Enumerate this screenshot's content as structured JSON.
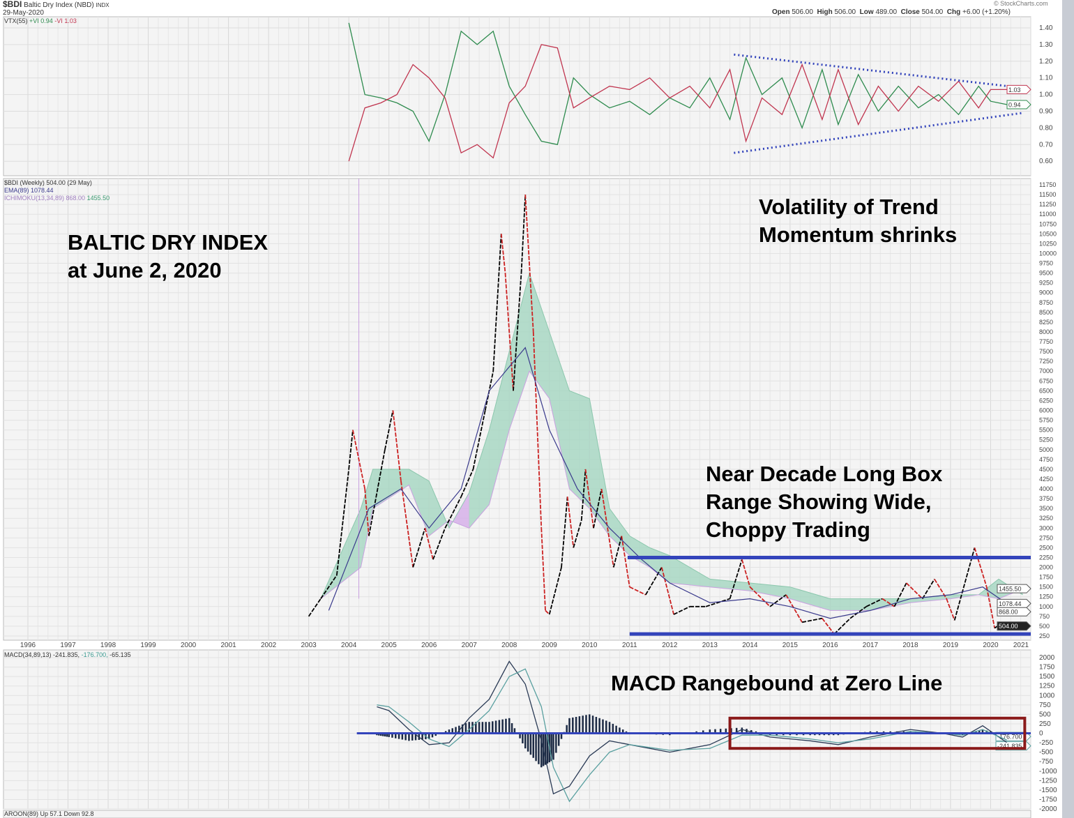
{
  "header": {
    "symbol": "$BDI",
    "name": "Baltic Dry Index (NBD)",
    "exchange": "INDX",
    "date": "29-May-2020",
    "watermark": "© StockCharts.com",
    "open_label": "Open",
    "open": "506.00",
    "high_label": "High",
    "high": "506.00",
    "low_label": "Low",
    "low": "489.00",
    "close_label": "Close",
    "close": "504.00",
    "chg_label": "Chg",
    "chg": "+6.00 (+1.20%)"
  },
  "legends": {
    "vtx": "VTX(55)",
    "vtx_plus": "+VI 0.94",
    "vtx_minus": "-VI 1.03",
    "price": "$BDI (Weekly) 504.00 (29 May)",
    "ema": "EMA(89) 1078.44",
    "ichimoku": "ICHIMOKU(13,34,89) 868.00",
    "ichimoku_b": "1455.50",
    "macd": "MACD(34,89,13) -241.835,",
    "macd_signal": "-176.700,",
    "macd_hist": "-65.135",
    "aroon": "AROON(89) Up 57.1 Down 92.8"
  },
  "annotations": {
    "title1": "BALTIC DRY INDEX",
    "title2": "at June 2, 2020",
    "vol1": "Volatility of Trend",
    "vol2": "Momentum shrinks",
    "box1": "Near Decade Long Box",
    "box2": "Range Showing Wide,",
    "box3": "Choppy Trading",
    "macd": "MACD Rangebound at Zero Line"
  },
  "colors": {
    "price": "#000000",
    "price_down": "#cc2222",
    "ema": "#3a3a8c",
    "cloud_bull": "#9fd4bd",
    "cloud_bear": "#d3a8e8",
    "vi_plus": "#2e8b4e",
    "vi_minus": "#c0354f",
    "trend_line": "#3344bb",
    "macd_box": "#8b1a1a"
  },
  "chart_data": [
    {
      "type": "line",
      "title": "VTX(55)",
      "ylim": [
        0.55,
        1.45
      ],
      "yticks": [
        "1.40",
        "1.30",
        "1.20",
        "1.10",
        "1.00",
        "0.90",
        "0.80",
        "0.70",
        "0.60"
      ],
      "last_labels": [
        "1.03",
        "0.94"
      ],
      "series": [
        {
          "name": "+VI",
          "x": [
            2004.0,
            2004.4,
            2004.8,
            2005.2,
            2005.6,
            2006.0,
            2006.4,
            2006.8,
            2007.2,
            2007.6,
            2008.0,
            2008.4,
            2008.8,
            2009.2,
            2009.6,
            2010.0,
            2010.5,
            2011.0,
            2011.5,
            2012.0,
            2012.5,
            2013.0,
            2013.5,
            2013.9,
            2014.3,
            2014.8,
            2015.3,
            2015.8,
            2016.2,
            2016.7,
            2017.2,
            2017.7,
            2018.2,
            2018.7,
            2019.2,
            2019.7,
            2020.0,
            2020.4
          ],
          "y": [
            1.43,
            1.0,
            0.98,
            0.95,
            0.9,
            0.72,
            1.0,
            1.38,
            1.3,
            1.38,
            1.05,
            0.88,
            0.72,
            0.7,
            1.1,
            1.0,
            0.92,
            0.96,
            0.88,
            0.98,
            0.92,
            1.1,
            0.85,
            1.22,
            1.0,
            1.1,
            0.8,
            1.15,
            0.82,
            1.12,
            0.9,
            1.05,
            0.92,
            1.0,
            0.88,
            1.05,
            0.96,
            0.94
          ]
        },
        {
          "name": "-VI",
          "x": [
            2004.0,
            2004.4,
            2004.8,
            2005.2,
            2005.6,
            2006.0,
            2006.4,
            2006.8,
            2007.2,
            2007.6,
            2008.0,
            2008.4,
            2008.8,
            2009.2,
            2009.6,
            2010.0,
            2010.5,
            2011.0,
            2011.5,
            2012.0,
            2012.5,
            2013.0,
            2013.5,
            2013.9,
            2014.3,
            2014.8,
            2015.3,
            2015.8,
            2016.2,
            2016.7,
            2017.2,
            2017.7,
            2018.2,
            2018.7,
            2019.2,
            2019.7,
            2020.0,
            2020.4
          ],
          "y": [
            0.6,
            0.92,
            0.95,
            1.0,
            1.18,
            1.1,
            0.98,
            0.65,
            0.7,
            0.62,
            0.95,
            1.05,
            1.3,
            1.28,
            0.92,
            0.98,
            1.05,
            1.03,
            1.1,
            0.98,
            1.05,
            0.92,
            1.15,
            0.72,
            0.98,
            0.88,
            1.18,
            0.85,
            1.15,
            0.82,
            1.05,
            0.9,
            1.05,
            0.96,
            1.08,
            0.92,
            1.03,
            1.03
          ]
        }
      ]
    },
    {
      "type": "line",
      "title": "$BDI (Weekly)",
      "xlim": [
        1995.7,
        2021
      ],
      "ylim": [
        0,
        12000
      ],
      "xticks": [
        "1996",
        "1997",
        "1998",
        "1999",
        "2000",
        "2001",
        "2002",
        "2003",
        "2004",
        "2005",
        "2006",
        "2007",
        "2008",
        "2009",
        "2010",
        "2011",
        "2012",
        "2013",
        "2014",
        "2015",
        "2016",
        "2017",
        "2018",
        "2019",
        "2020",
        "2021"
      ],
      "yticks": [
        11750,
        11500,
        11250,
        11000,
        10750,
        10500,
        10250,
        10000,
        9750,
        9500,
        9250,
        9000,
        8750,
        8500,
        8250,
        8000,
        7750,
        7500,
        7250,
        7000,
        6750,
        6500,
        6250,
        6000,
        5750,
        5500,
        5250,
        5000,
        4750,
        4500,
        4250,
        4000,
        3750,
        3500,
        3250,
        3000,
        2750,
        2500,
        2250,
        2000,
        1750,
        1500,
        1250,
        1000,
        750,
        500,
        250
      ],
      "last_labels": [
        "1455.50",
        "1078.44",
        "868.00",
        "504.00"
      ],
      "price": {
        "x": [
          2003.0,
          2003.3,
          2003.7,
          2004.0,
          2004.1,
          2004.4,
          2004.5,
          2004.9,
          2005.1,
          2005.3,
          2005.6,
          2005.9,
          2006.1,
          2006.4,
          2006.8,
          2007.1,
          2007.4,
          2007.6,
          2007.8,
          2007.9,
          2008.1,
          2008.3,
          2008.4,
          2008.6,
          2008.8,
          2008.9,
          2009.0,
          2009.3,
          2009.45,
          2009.6,
          2009.8,
          2009.9,
          2010.1,
          2010.3,
          2010.6,
          2010.8,
          2011.0,
          2011.4,
          2011.8,
          2012.1,
          2012.5,
          2012.9,
          2013.5,
          2013.8,
          2014.0,
          2014.5,
          2014.9,
          2015.3,
          2015.8,
          2016.1,
          2016.5,
          2016.9,
          2017.3,
          2017.6,
          2017.9,
          2018.3,
          2018.6,
          2018.9,
          2019.1,
          2019.6,
          2019.9,
          2020.1,
          2020.3,
          2020.4
        ],
        "y": [
          750,
          1200,
          1800,
          4500,
          5500,
          4000,
          2800,
          5000,
          6000,
          4200,
          2000,
          3000,
          2200,
          3000,
          3800,
          4500,
          6000,
          7000,
          10500,
          9500,
          6500,
          9500,
          11500,
          8000,
          3000,
          900,
          800,
          2000,
          3800,
          2500,
          3200,
          4500,
          3000,
          4000,
          2000,
          2800,
          1500,
          1300,
          2000,
          800,
          1000,
          1000,
          1200,
          2200,
          1500,
          1000,
          1300,
          600,
          700,
          300,
          700,
          1000,
          1200,
          1000,
          1600,
          1200,
          1700,
          1200,
          650,
          2500,
          1500,
          450,
          600,
          504
        ]
      },
      "ema": {
        "x": [
          2003.5,
          2004.5,
          2005.3,
          2006.0,
          2006.8,
          2007.5,
          2008.4,
          2009.0,
          2009.7,
          2010.5,
          2011.3,
          2012.0,
          2013.0,
          2014.0,
          2015.0,
          2016.0,
          2017.0,
          2018.0,
          2019.0,
          2019.8,
          2020.4
        ],
        "y": [
          900,
          3500,
          4000,
          3000,
          4000,
          6500,
          7600,
          5500,
          4000,
          3000,
          2200,
          1600,
          1100,
          1200,
          1000,
          700,
          900,
          1200,
          1300,
          1500,
          1078
        ]
      },
      "cloud": {
        "x": [
          2003.3,
          2004.3,
          2004.6,
          2005.5,
          2006.0,
          2006.5,
          2007.0,
          2007.5,
          2008.0,
          2008.5,
          2009.0,
          2009.5,
          2010.0,
          2010.5,
          2011.0,
          2011.5,
          2012.0,
          2013.0,
          2014.0,
          2015.0,
          2016.0,
          2017.0,
          2018.0,
          2019.0,
          2019.7,
          2020.2,
          2020.8
        ],
        "span_a": [
          1200,
          3500,
          4500,
          4500,
          4200,
          3000,
          3900,
          5500,
          7500,
          9500,
          8000,
          6500,
          6300,
          3500,
          2800,
          2500,
          2300,
          1700,
          1600,
          1500,
          1200,
          1200,
          1200,
          1300,
          1300,
          1700,
          1300
        ],
        "span_b": [
          1200,
          2000,
          3500,
          4100,
          2800,
          3200,
          3000,
          3600,
          5500,
          7000,
          6300,
          4000,
          3500,
          2800,
          2300,
          2000,
          1600,
          1500,
          1400,
          1200,
          900,
          900,
          1100,
          1200,
          1300,
          1200,
          1450
        ]
      },
      "resistance": 2250,
      "support": 300
    },
    {
      "type": "line",
      "title": "MACD(34,89,13)",
      "ylim": [
        -2000,
        2000
      ],
      "yticks": [
        2000,
        1750,
        1500,
        1250,
        1000,
        750,
        500,
        250,
        0,
        -250,
        -500,
        -750,
        -1000,
        -1250,
        -1500,
        -1750,
        -2000
      ],
      "last_labels": [
        "-176.700",
        "-241.835"
      ],
      "series": [
        {
          "name": "MACD",
          "x": [
            2004.7,
            2005.0,
            2005.5,
            2006.0,
            2006.5,
            2007.0,
            2007.5,
            2008.0,
            2008.4,
            2008.8,
            2009.1,
            2009.5,
            2010.0,
            2010.5,
            2011.0,
            2012.0,
            2013.0,
            2013.8,
            2014.5,
            2015.5,
            2016.2,
            2017.0,
            2018.0,
            2018.8,
            2019.3,
            2019.8,
            2020.4
          ],
          "y": [
            700,
            600,
            100,
            -300,
            -250,
            400,
            900,
            1900,
            1300,
            -200,
            -1600,
            -1400,
            -600,
            -200,
            -300,
            -500,
            -300,
            100,
            -100,
            -200,
            -300,
            -100,
            100,
            0,
            -100,
            200,
            -242
          ]
        },
        {
          "name": "Signal",
          "x": [
            2004.7,
            2005.0,
            2005.5,
            2006.0,
            2006.5,
            2007.0,
            2007.5,
            2008.0,
            2008.4,
            2008.8,
            2009.1,
            2009.5,
            2010.0,
            2010.5,
            2011.0,
            2012.0,
            2013.0,
            2013.8,
            2014.5,
            2015.5,
            2016.2,
            2017.0,
            2018.0,
            2018.8,
            2019.3,
            2019.8,
            2020.4
          ],
          "y": [
            750,
            700,
            300,
            -150,
            -350,
            100,
            600,
            1500,
            1700,
            700,
            -900,
            -1800,
            -1100,
            -500,
            -300,
            -450,
            -400,
            -50,
            -50,
            -150,
            -250,
            -150,
            50,
            0,
            -50,
            100,
            -177
          ]
        }
      ]
    }
  ]
}
